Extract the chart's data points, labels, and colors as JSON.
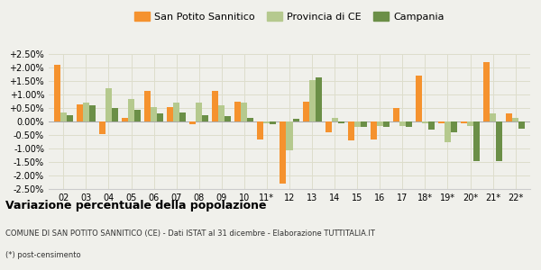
{
  "years": [
    "02",
    "03",
    "04",
    "05",
    "06",
    "07",
    "08",
    "09",
    "10",
    "11*",
    "12",
    "13",
    "14",
    "15",
    "16",
    "17",
    "18*",
    "19*",
    "20*",
    "21*",
    "22*"
  ],
  "san_potito": [
    2.1,
    0.65,
    -0.45,
    0.15,
    1.15,
    0.55,
    -0.1,
    1.15,
    0.75,
    -0.65,
    -2.3,
    0.75,
    -0.4,
    -0.7,
    -0.65,
    0.5,
    1.7,
    -0.05,
    -0.05,
    2.2,
    0.3
  ],
  "provincia_ce": [
    0.35,
    0.7,
    1.25,
    0.85,
    0.55,
    0.7,
    0.7,
    0.6,
    0.7,
    -0.05,
    -1.05,
    1.55,
    0.15,
    -0.2,
    -0.15,
    -0.15,
    -0.05,
    -0.75,
    -0.15,
    0.3,
    0.15
  ],
  "campania": [
    0.25,
    0.6,
    0.5,
    0.45,
    0.3,
    0.35,
    0.25,
    0.2,
    0.15,
    -0.1,
    0.1,
    1.65,
    -0.05,
    -0.2,
    -0.2,
    -0.2,
    -0.3,
    -0.4,
    -1.45,
    -1.45,
    -0.25
  ],
  "san_potito_color": "#f5922e",
  "provincia_ce_color": "#b5c98e",
  "campania_color": "#6b8f47",
  "bg_color": "#f0f0eb",
  "grid_color": "#ddddcc",
  "title": "Variazione percentuale della popolazione",
  "subtitle": "COMUNE DI SAN POTITO SANNITICO (CE) - Dati ISTAT al 31 dicembre - Elaborazione TUTTITALIA.IT",
  "footnote": "(*) post-censimento",
  "ylim": [
    -2.5,
    2.5
  ],
  "yticks": [
    -2.5,
    -2.0,
    -1.5,
    -1.0,
    -0.5,
    0.0,
    0.5,
    1.0,
    1.5,
    2.0,
    2.5
  ],
  "ytick_labels": [
    "-2.50%",
    "-2.00%",
    "-1.50%",
    "-1.00%",
    "-0.50%",
    "0.00%",
    "+0.50%",
    "+1.00%",
    "+1.50%",
    "+2.00%",
    "+2.50%"
  ],
  "legend_labels": [
    "San Potito Sannitico",
    "Provincia di CE",
    "Campania"
  ]
}
